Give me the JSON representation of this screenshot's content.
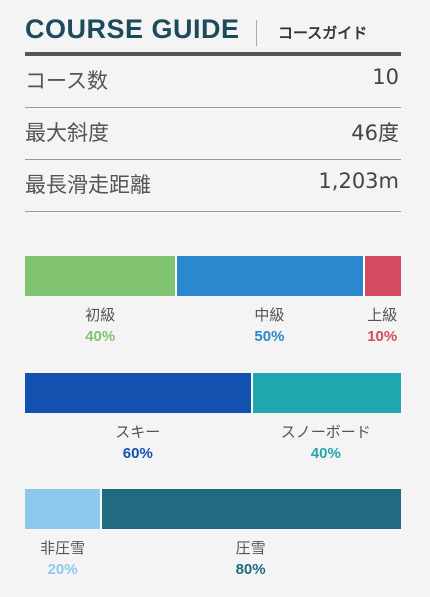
{
  "header": {
    "title_en": "COURSE GUIDE",
    "title_ja": "コースガイド"
  },
  "stats": [
    {
      "label": "コース数",
      "value": "10"
    },
    {
      "label": "最大斜度",
      "value": "46度"
    },
    {
      "label": "最長滑走距離",
      "value": "1,203m"
    }
  ],
  "difficulty": {
    "segments": [
      {
        "name": "初級",
        "pct_label": "40%",
        "share": 40,
        "color": "#80c472"
      },
      {
        "name": "中級",
        "pct_label": "50%",
        "share": 50,
        "color": "#2b88cc"
      },
      {
        "name": "上級",
        "pct_label": "10%",
        "share": 10,
        "color": "#d44a60"
      }
    ]
  },
  "users": {
    "segments": [
      {
        "name": "スキー",
        "pct_label": "60%",
        "share": 60,
        "color": "#1351b1"
      },
      {
        "name": "スノーボード",
        "pct_label": "40%",
        "share": 40,
        "color": "#20a7b0"
      }
    ]
  },
  "grooming": {
    "segments": [
      {
        "name": "非圧雪",
        "pct_label": "20%",
        "share": 20,
        "color": "#8cc9ec"
      },
      {
        "name": "圧雪",
        "pct_label": "80%",
        "share": 80,
        "color": "#216b80"
      }
    ]
  }
}
